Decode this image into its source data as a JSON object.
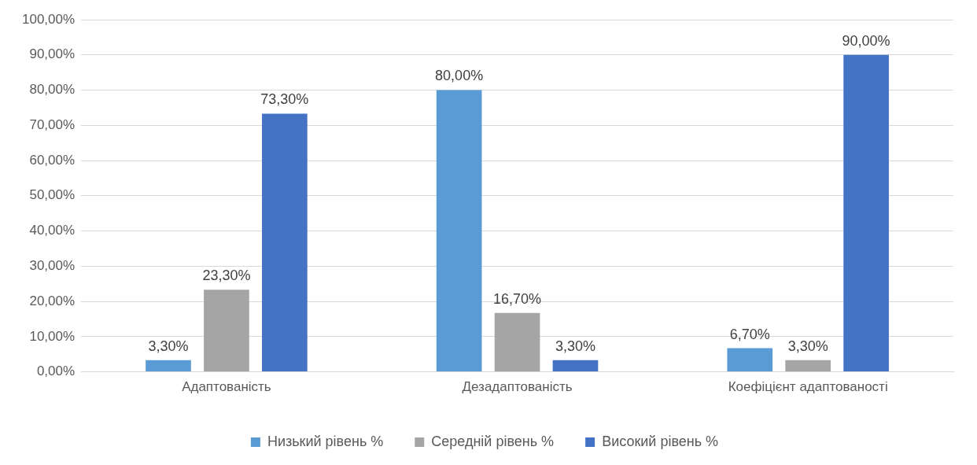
{
  "chart_data": {
    "type": "bar",
    "categories": [
      "Адаптованість",
      "Дезадаптованість",
      "Коефіцієнт адаптованості"
    ],
    "series": [
      {
        "name": "Низький рівень %",
        "color": "#5b9bd5",
        "values": [
          3.3,
          80,
          6.7
        ],
        "value_labels": [
          "3,30%",
          "80,00%",
          "6,70%"
        ]
      },
      {
        "name": "Середній рівень %",
        "color": "#a5a5a5",
        "values": [
          23.3,
          16.7,
          3.3
        ],
        "value_labels": [
          "23,30%",
          "16,70%",
          "3,30%"
        ]
      },
      {
        "name": "Високий рівень %",
        "color": "#4472c4",
        "values": [
          73.3,
          3.3,
          90
        ],
        "value_labels": [
          "73,30%",
          "3,30%",
          "90,00%"
        ]
      }
    ],
    "ylim": [
      0,
      100
    ],
    "yticks": [
      {
        "value": 0,
        "label": "0,00%"
      },
      {
        "value": 10,
        "label": "10,00%"
      },
      {
        "value": 20,
        "label": "20,00%"
      },
      {
        "value": 30,
        "label": "30,00%"
      },
      {
        "value": 40,
        "label": "40,00%"
      },
      {
        "value": 50,
        "label": "50,00%"
      },
      {
        "value": 60,
        "label": "60,00%"
      },
      {
        "value": 70,
        "label": "70,00%"
      },
      {
        "value": 80,
        "label": "80,00%"
      },
      {
        "value": 90,
        "label": "90,00%"
      },
      {
        "value": 100,
        "label": "100,00%"
      }
    ],
    "grid": "y",
    "legend": "bottom"
  }
}
